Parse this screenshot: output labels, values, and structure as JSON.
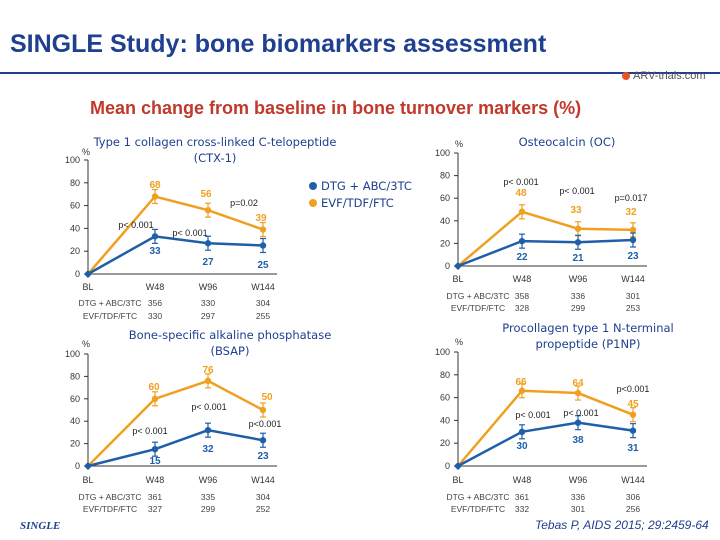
{
  "slide": {
    "title": "SINGLE Study: bone biomarkers assessment",
    "subtitle": "Mean change from baseline in bone turnover markers (%)",
    "logo_text": "ARV-trials.com",
    "footer_logo": "SINGLE",
    "citation": "Tebas P, AIDS 2015; 29:2459-64"
  },
  "colors": {
    "orange": "#f0a020",
    "blue": "#1f5faa",
    "axis": "#333333",
    "title": "#1f3f8f"
  },
  "legend": [
    "DTG + ABC/3TC",
    "EVF/TDF/FTC"
  ],
  "n_row_labels": [
    "DTG + ABC/3TC",
    "EVF/TDF/FTC"
  ],
  "chart_data": [
    {
      "type": "line",
      "id": "ctx",
      "title_lines": [
        "Type 1 collagen cross-linked C-telopeptide",
        "(CTX-1)"
      ],
      "y_unit": "%",
      "ylim": [
        0,
        100
      ],
      "yticks": [
        0,
        20,
        40,
        60,
        80,
        100
      ],
      "categories": [
        "BL",
        "W48",
        "W96",
        "W144"
      ],
      "series": [
        {
          "name": "EVF/TDF/FTC",
          "values": [
            0,
            68,
            56,
            39
          ],
          "labels": [
            "",
            "68",
            "56",
            "39"
          ]
        },
        {
          "name": "DTG + ABC/3TC",
          "values": [
            0,
            33,
            27,
            25
          ],
          "labels": [
            "",
            "33",
            "27",
            "25"
          ]
        }
      ],
      "pvalues": [
        {
          "text": "p< 0.001",
          "cat": 1
        },
        {
          "text": "p< 0.001",
          "cat": 2
        },
        {
          "text": "p=0.02",
          "cat": 3
        }
      ],
      "n_dtg": [
        "356",
        "330",
        "304"
      ],
      "n_evf": [
        "330",
        "297",
        "255"
      ]
    },
    {
      "type": "line",
      "id": "oc",
      "title_lines": [
        "Osteocalcin (OC)"
      ],
      "y_unit": "%",
      "ylim": [
        0,
        100
      ],
      "yticks": [
        0,
        20,
        40,
        60,
        80,
        100
      ],
      "categories": [
        "BL",
        "W48",
        "W96",
        "W144"
      ],
      "series": [
        {
          "name": "EVF/TDF/FTC",
          "values": [
            0,
            48,
            33,
            32
          ],
          "labels": [
            "",
            "48",
            "33",
            "32"
          ]
        },
        {
          "name": "DTG + ABC/3TC",
          "values": [
            0,
            22,
            21,
            23
          ],
          "labels": [
            "",
            "22",
            "21",
            "23"
          ]
        }
      ],
      "pvalues": [
        {
          "text": "p< 0.001",
          "cat": 1
        },
        {
          "text": "p< 0.001",
          "cat": 2
        },
        {
          "text": "p=0.017",
          "cat": 3
        }
      ],
      "n_dtg": [
        "358",
        "336",
        "301"
      ],
      "n_evf": [
        "328",
        "299",
        "253"
      ]
    },
    {
      "type": "line",
      "id": "bsap",
      "title_lines": [
        "Bone-specific alkaline phosphatase",
        "(BSAP)"
      ],
      "y_unit": "%",
      "ylim": [
        0,
        100
      ],
      "yticks": [
        0,
        20,
        40,
        60,
        80,
        100
      ],
      "categories": [
        "BL",
        "W48",
        "W96",
        "W144"
      ],
      "series": [
        {
          "name": "EVF/TDF/FTC",
          "values": [
            0,
            60,
            76,
            50
          ],
          "labels": [
            "",
            "60",
            "76",
            "50"
          ]
        },
        {
          "name": "DTG + ABC/3TC",
          "values": [
            0,
            15,
            32,
            23
          ],
          "labels": [
            "",
            "15",
            "32",
            "23"
          ]
        }
      ],
      "pvalues": [
        {
          "text": "p< 0.001",
          "cat": 1
        },
        {
          "text": "p< 0.001",
          "cat": 2
        },
        {
          "text": "p<0.001",
          "cat": 3
        }
      ],
      "n_dtg": [
        "361",
        "335",
        "304"
      ],
      "n_evf": [
        "327",
        "299",
        "252"
      ]
    },
    {
      "type": "line",
      "id": "p1np",
      "title_lines": [
        "Procollagen type 1 N-terminal",
        "propeptide (P1NP)"
      ],
      "y_unit": "%",
      "ylim": [
        0,
        100
      ],
      "yticks": [
        0,
        20,
        40,
        60,
        80,
        100
      ],
      "categories": [
        "BL",
        "W48",
        "W96",
        "W144"
      ],
      "series": [
        {
          "name": "EVF/TDF/FTC",
          "values": [
            0,
            66,
            64,
            45
          ],
          "labels": [
            "",
            "66",
            "64",
            "45"
          ]
        },
        {
          "name": "DTG + ABC/3TC",
          "values": [
            0,
            30,
            38,
            31
          ],
          "labels": [
            "",
            "30",
            "38",
            "31"
          ]
        }
      ],
      "pvalues": [
        {
          "text": "p< 0.001",
          "cat": 1
        },
        {
          "text": "p< 0.001",
          "cat": 2
        },
        {
          "text": "p<0.001",
          "cat": 3
        }
      ],
      "n_dtg": [
        "361",
        "336",
        "306"
      ],
      "n_evf": [
        "332",
        "301",
        "256"
      ]
    }
  ]
}
